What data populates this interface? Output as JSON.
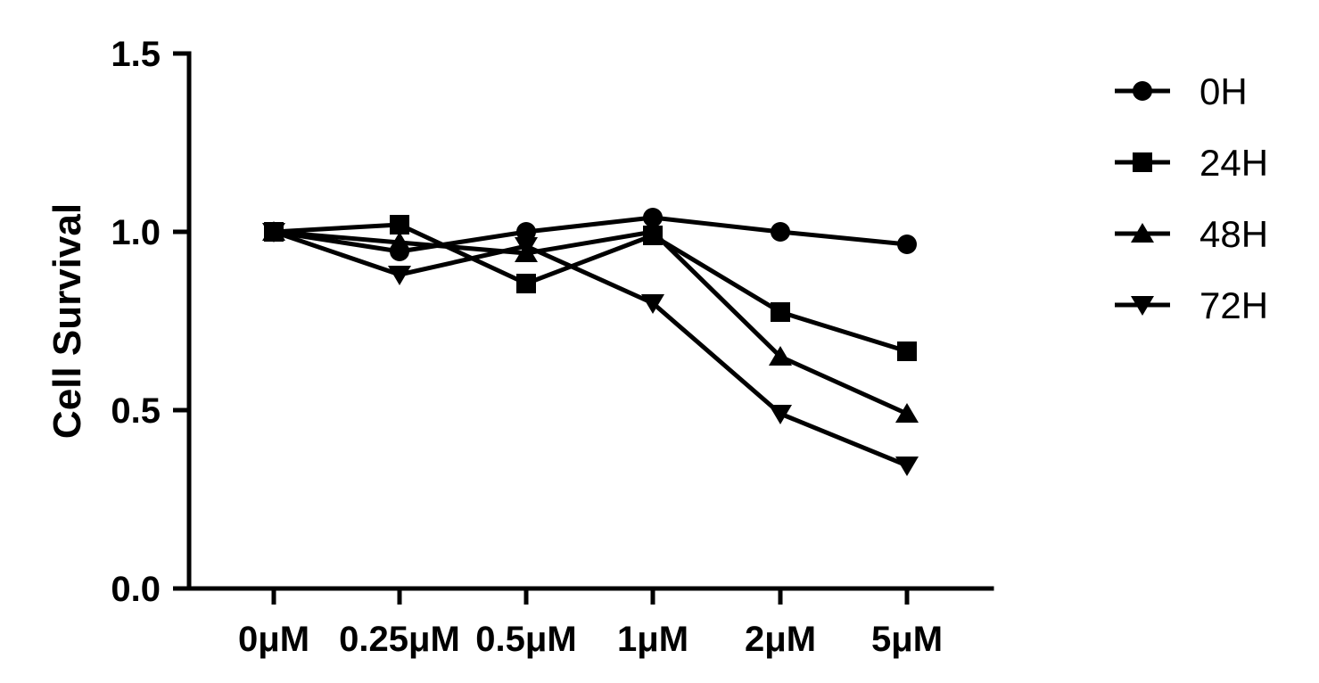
{
  "chart_data": {
    "type": "line",
    "title": "",
    "xlabel": "",
    "ylabel": "Cell Survival",
    "categories": [
      "0μM",
      "0.25μM",
      "0.5μM",
      "1μM",
      "2μM",
      "5μM"
    ],
    "ylim": [
      0.0,
      1.5
    ],
    "yticks": [
      "0.0",
      "0.5",
      "1.0",
      "1.5"
    ],
    "grid": false,
    "legend_position": "right",
    "series": [
      {
        "name": "0H",
        "marker": "circle",
        "values": [
          1.0,
          0.945,
          1.0,
          1.04,
          1.0,
          0.965
        ]
      },
      {
        "name": "24H",
        "marker": "square",
        "values": [
          1.0,
          1.02,
          0.855,
          0.99,
          0.775,
          0.665
        ]
      },
      {
        "name": "48H",
        "marker": "triangle-up",
        "values": [
          1.0,
          0.97,
          0.94,
          1.0,
          0.65,
          0.49
        ]
      },
      {
        "name": "72H",
        "marker": "triangle-down",
        "values": [
          1.0,
          0.88,
          0.96,
          0.8,
          0.49,
          0.345
        ]
      }
    ]
  }
}
